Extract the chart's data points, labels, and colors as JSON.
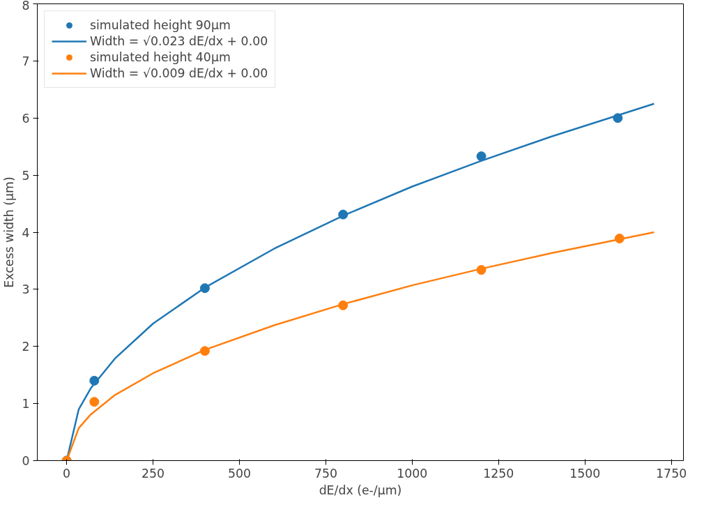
{
  "chart_data": {
    "type": "scatter",
    "xlabel": "dE/dx (e-/μm)",
    "ylabel": "Excess width (μm)",
    "xlim": [
      -85,
      1785
    ],
    "ylim": [
      0,
      8
    ],
    "xticks": [
      0,
      250,
      500,
      750,
      1000,
      1250,
      1500,
      1750
    ],
    "yticks": [
      0,
      1,
      2,
      3,
      4,
      5,
      6,
      7,
      8
    ],
    "grid": false,
    "legend": "top left",
    "series": [
      {
        "name": "simulated height 90μm",
        "marker": "circle",
        "color": "#1f77b4",
        "x": [
          0,
          80,
          400,
          800,
          1200,
          1595
        ],
        "values": [
          0,
          1.4,
          3.02,
          4.31,
          5.33,
          6.0
        ]
      },
      {
        "name": "Width = √0.023 dE/dx + 0.00",
        "type": "line",
        "marker": "none",
        "color": "#1f77b4",
        "x": [
          0,
          35,
          70,
          140,
          250,
          400,
          600,
          800,
          1000,
          1200,
          1400,
          1700
        ],
        "values": [
          0,
          0.9,
          1.27,
          1.79,
          2.4,
          3.03,
          3.71,
          4.29,
          4.8,
          5.25,
          5.67,
          6.25
        ]
      },
      {
        "name": "simulated height 40μm",
        "marker": "circle",
        "color": "#ff7f0e",
        "x": [
          0,
          80,
          400,
          800,
          1200,
          1600
        ],
        "values": [
          0,
          1.03,
          1.92,
          2.72,
          3.34,
          3.89
        ]
      },
      {
        "name": "Width = √0.009 dE/dx + 0.00",
        "type": "line",
        "marker": "none",
        "color": "#ff7f0e",
        "x": [
          0,
          35,
          70,
          140,
          250,
          400,
          600,
          800,
          1000,
          1200,
          1400,
          1700
        ],
        "values": [
          0,
          0.57,
          0.81,
          1.15,
          1.53,
          1.94,
          2.37,
          2.74,
          3.07,
          3.36,
          3.63,
          4.0
        ]
      }
    ]
  }
}
